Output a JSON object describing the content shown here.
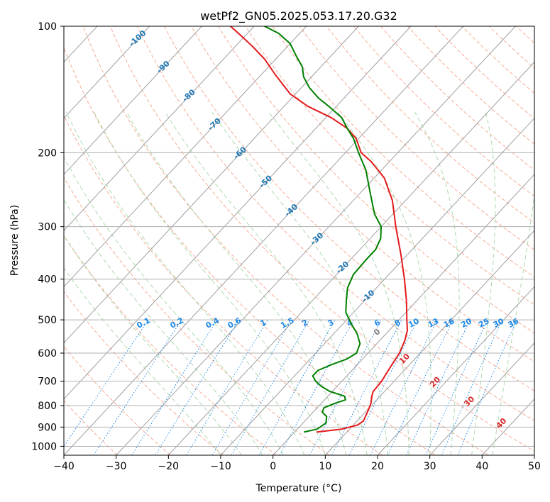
{
  "chart_data": {
    "type": "line",
    "title": "wetPf2_GN05.2025.053.17.20.G32",
    "xlabel": "Temperature (°C)",
    "ylabel": "Pressure (hPa)",
    "xlim": [
      -40,
      50
    ],
    "ylim": [
      1050,
      100
    ],
    "y_scale": "log",
    "skew": true,
    "grid": true,
    "x_ticks": [
      -40,
      -30,
      -20,
      -10,
      0,
      10,
      20,
      30,
      40,
      50
    ],
    "y_ticks": [
      100,
      200,
      300,
      400,
      500,
      600,
      700,
      800,
      900,
      1000
    ],
    "series": [
      {
        "color": "#e41a1c",
        "points": [
          [
            925,
            4.2
          ],
          [
            910,
            8.5
          ],
          [
            890,
            10.8
          ],
          [
            870,
            11.2
          ],
          [
            850,
            10.8
          ],
          [
            820,
            10.2
          ],
          [
            790,
            9.5
          ],
          [
            760,
            8.4
          ],
          [
            740,
            7.8
          ],
          [
            700,
            7.6
          ],
          [
            650,
            6.8
          ],
          [
            600,
            6.0
          ],
          [
            560,
            4.8
          ],
          [
            530,
            3.5
          ],
          [
            500,
            1.5
          ],
          [
            450,
            -2.0
          ],
          [
            400,
            -6.2
          ],
          [
            350,
            -11.2
          ],
          [
            300,
            -17.2
          ],
          [
            260,
            -22.5
          ],
          [
            230,
            -28.0
          ],
          [
            210,
            -33.5
          ],
          [
            200,
            -37.0
          ],
          [
            185,
            -40.5
          ],
          [
            175,
            -44.0
          ],
          [
            165,
            -49.0
          ],
          [
            155,
            -55.5
          ],
          [
            145,
            -61.0
          ],
          [
            130,
            -67.5
          ],
          [
            120,
            -72.0
          ],
          [
            112,
            -76.5
          ],
          [
            105,
            -81.0
          ],
          [
            100,
            -84.5
          ]
        ]
      },
      {
        "color": "#008000",
        "points": [
          [
            925,
            1.8
          ],
          [
            910,
            3.8
          ],
          [
            880,
            4.4
          ],
          [
            850,
            3.4
          ],
          [
            830,
            1.8
          ],
          [
            810,
            1.3
          ],
          [
            790,
            2.6
          ],
          [
            775,
            4.0
          ],
          [
            760,
            3.2
          ],
          [
            740,
            -0.5
          ],
          [
            720,
            -3.0
          ],
          [
            700,
            -5.0
          ],
          [
            680,
            -6.5
          ],
          [
            660,
            -6.5
          ],
          [
            640,
            -5.0
          ],
          [
            620,
            -3.0
          ],
          [
            600,
            -2.2
          ],
          [
            570,
            -3.2
          ],
          [
            540,
            -5.5
          ],
          [
            510,
            -8.5
          ],
          [
            480,
            -11.5
          ],
          [
            450,
            -13.5
          ],
          [
            420,
            -15.5
          ],
          [
            390,
            -16.8
          ],
          [
            360,
            -17.0
          ],
          [
            340,
            -17.0
          ],
          [
            320,
            -18.0
          ],
          [
            300,
            -20.0
          ],
          [
            280,
            -23.5
          ],
          [
            250,
            -28.0
          ],
          [
            220,
            -33.0
          ],
          [
            200,
            -37.5
          ],
          [
            185,
            -41.0
          ],
          [
            175,
            -44.0
          ],
          [
            165,
            -47.0
          ],
          [
            155,
            -51.5
          ],
          [
            148,
            -55.0
          ],
          [
            140,
            -58.5
          ],
          [
            132,
            -61.5
          ],
          [
            125,
            -63.5
          ],
          [
            118,
            -66.5
          ],
          [
            110,
            -70.0
          ],
          [
            104,
            -74.0
          ],
          [
            100,
            -78.0
          ]
        ]
      }
    ],
    "dry_adiabat_labels": [
      "-100",
      "-90",
      "-80",
      "-70",
      "-60",
      "-50",
      "-40",
      "-30",
      "-20",
      "-10"
    ],
    "moist_adiabat_labels": [
      "0",
      "10",
      "20",
      "30",
      "40"
    ],
    "mixing_ratio_labels": [
      "0.1",
      "0.2",
      "0.4",
      "0.6",
      "1",
      "1.5",
      "2",
      "3",
      "4",
      "6",
      "8",
      "10",
      "13",
      "16",
      "20",
      "25",
      "30",
      "36"
    ],
    "colors": {
      "dry_adiabat": "#f5a38a",
      "moist_adiabat": "#9fd29f",
      "mixing_ratio": "#1e88e5",
      "dry_label": "#1f77b4",
      "moist_label": "#d62728",
      "zero_label": "#808080",
      "isotherm": "#a0a0a0",
      "isobar": "#b0b0b0"
    }
  }
}
